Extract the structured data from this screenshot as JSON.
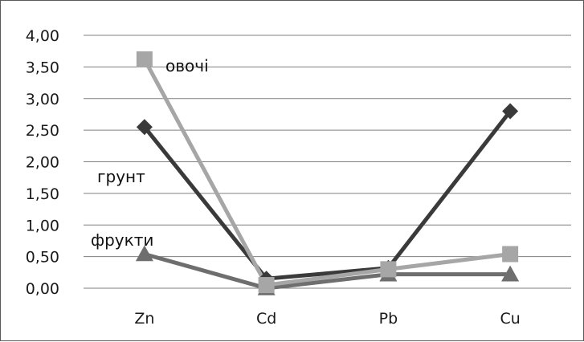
{
  "chart_data": {
    "type": "line",
    "title": "",
    "xlabel": "",
    "ylabel": "",
    "categories": [
      "Zn",
      "Cd",
      "Pb",
      "Cu"
    ],
    "ylim": [
      0,
      4
    ],
    "y_ticks": [
      "0,00",
      "0,50",
      "1,00",
      "1,50",
      "2,00",
      "2,50",
      "3,00",
      "3,50",
      "4,00"
    ],
    "grid": true,
    "legend": "none",
    "series": [
      {
        "name": "грунт",
        "values": [
          2.55,
          0.15,
          0.32,
          2.8
        ],
        "color": "#3a3a3a",
        "marker": "diamond"
      },
      {
        "name": "овочі",
        "values": [
          3.62,
          0.05,
          0.3,
          0.54
        ],
        "color": "#a6a6a6",
        "marker": "square"
      },
      {
        "name": "фрукти",
        "values": [
          0.54,
          0.0,
          0.22,
          0.22
        ],
        "color": "#6e6e6e",
        "marker": "triangle"
      }
    ]
  }
}
